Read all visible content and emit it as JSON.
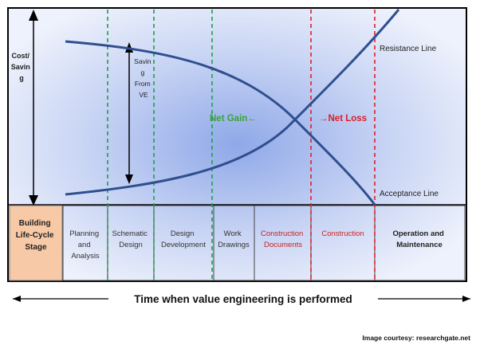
{
  "diagram": {
    "ylabel_line1": "Cost/",
    "ylabel_line2": "Savin",
    "ylabel_line3": "g",
    "saving_line1": "Savin",
    "saving_line2": "g",
    "saving_line3": "From",
    "saving_line4": "VE",
    "net_gain": "Net Gain←",
    "net_loss": "→Net Loss",
    "resistance_line": "Resistance Line",
    "acceptance_line": "Acceptance Line",
    "stage_header_line1": "Building",
    "stage_header_line2": "Life-Cycle",
    "stage_header_line3": "Stage",
    "stages": [
      {
        "line1": "Planning",
        "line2": "and",
        "line3": "Analysis"
      },
      {
        "line1": "Schematic",
        "line2": "Design"
      },
      {
        "line1": "Design",
        "line2": "Development"
      },
      {
        "line1": "Work",
        "line2": "Drawings"
      },
      {
        "line1": "Construction",
        "line2": "Documents"
      },
      {
        "line1": "Construction"
      },
      {
        "line1": "Operation and",
        "line2": "Maintenance"
      }
    ],
    "time_caption": "Time when value engineering is performed",
    "credit": "Image courtesy: researchgate.net"
  },
  "colors": {
    "curve": "#2f4f8f",
    "green_dashed": "#1e9e4a",
    "red_dashed": "#e0202a",
    "net_gain": "#3aa33a",
    "net_loss": "#d8202a",
    "header_fill": "#f7c9a6",
    "red_text": "#cc2222"
  }
}
